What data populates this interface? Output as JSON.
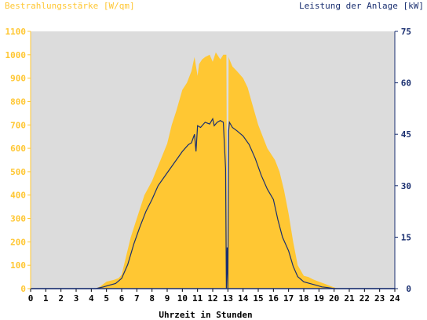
{
  "chart_data": {
    "type": "area",
    "left_axis": {
      "title": "Bestrahlungsstärke [W/qm]",
      "range": [
        0,
        1100
      ],
      "ticks": [
        0,
        100,
        200,
        300,
        400,
        500,
        600,
        700,
        800,
        900,
        1000,
        1100
      ],
      "color": "#ffc733"
    },
    "right_axis": {
      "title": "Leistung der Anlage [kW]",
      "range": [
        0,
        75
      ],
      "ticks": [
        0,
        15,
        30,
        45,
        60,
        75
      ],
      "color": "#1a2f70"
    },
    "x_axis": {
      "title": "Uhrzeit in Stunden",
      "range": [
        0,
        24
      ],
      "ticks": [
        0,
        1,
        2,
        3,
        4,
        5,
        6,
        7,
        8,
        9,
        10,
        11,
        12,
        13,
        14,
        15,
        16,
        17,
        18,
        19,
        20,
        21,
        22,
        23,
        24
      ]
    },
    "plot_background": "#dcdcdc",
    "series": [
      {
        "kind": "area",
        "axis": "left",
        "color": "#ffc733",
        "x": [
          0,
          4.3,
          4.6,
          5,
          5.5,
          5.8,
          6,
          6.3,
          6.6,
          7,
          7.5,
          8,
          8.5,
          9,
          9.3,
          9.6,
          10,
          10.3,
          10.6,
          10.8,
          11,
          11.1,
          11.3,
          11.5,
          11.8,
          12,
          12.2,
          12.5,
          12.7,
          12.9,
          12.95,
          13.0,
          13.05,
          13.1,
          13.3,
          13.6,
          14,
          14.3,
          14.6,
          15,
          15.3,
          15.6,
          15.9,
          16.1,
          16.4,
          16.7,
          17,
          17.3,
          17.6,
          18,
          18.3,
          18.6,
          19,
          19.4,
          19.8,
          20.1,
          20.5,
          21,
          24
        ],
        "y": [
          0,
          0,
          10,
          30,
          38,
          45,
          60,
          140,
          220,
          300,
          400,
          460,
          540,
          620,
          700,
          760,
          850,
          880,
          930,
          990,
          910,
          960,
          980,
          990,
          1000,
          970,
          1010,
          980,
          1000,
          1000,
          160,
          130,
          990,
          980,
          950,
          930,
          900,
          860,
          790,
          700,
          650,
          600,
          570,
          550,
          500,
          420,
          320,
          200,
          100,
          55,
          50,
          40,
          30,
          20,
          10,
          3,
          0,
          0,
          0
        ]
      },
      {
        "kind": "line",
        "axis": "right",
        "color": "#1a2f70",
        "x": [
          0,
          4.3,
          4.8,
          5.2,
          5.6,
          6,
          6.4,
          6.8,
          7.2,
          7.6,
          8,
          8.4,
          8.8,
          9.2,
          9.6,
          10,
          10.2,
          10.4,
          10.6,
          10.8,
          10.9,
          11.0,
          11.2,
          11.5,
          11.8,
          12.0,
          12.1,
          12.3,
          12.5,
          12.7,
          12.85,
          12.9,
          12.95,
          13.0,
          13.05,
          13.1,
          13.3,
          13.6,
          14,
          14.4,
          14.8,
          15.2,
          15.6,
          16,
          16.3,
          16.6,
          17,
          17.3,
          17.6,
          18,
          18.4,
          18.8,
          19.2,
          19.6,
          20,
          20.2,
          21,
          24
        ],
        "y": [
          0,
          0,
          0.5,
          1,
          1.5,
          3,
          7,
          13,
          18,
          22.5,
          26,
          30,
          32.5,
          35,
          37.5,
          40,
          41,
          42,
          42.5,
          45,
          40,
          47.5,
          47,
          48.5,
          48,
          49.5,
          47.5,
          48.5,
          49,
          48.5,
          35,
          0,
          12,
          0,
          46,
          48.5,
          47,
          46,
          44.5,
          42,
          38,
          33,
          29,
          26,
          20,
          15,
          11,
          6.5,
          3.5,
          2,
          1.5,
          1,
          0.5,
          0.3,
          0,
          0,
          0,
          0
        ]
      }
    ]
  }
}
